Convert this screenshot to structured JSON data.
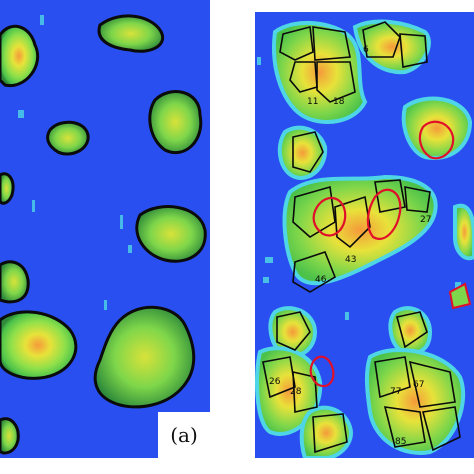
{
  "figure": {
    "panel_a_caption": "(a)",
    "panel_b_caption": ""
  },
  "colors": {
    "background_blue": "#2a4ff0",
    "low_cyan": "#4fd6e6",
    "mid_green": "#6ee05a",
    "high_yellow": "#e8e23a",
    "peak_orange": "#f59a3a",
    "segment_outline": "#0b0b0b",
    "highlight_outline": "#e0102a"
  },
  "segment_labels": [
    "6",
    "11",
    "18",
    "27",
    "43",
    "46",
    "67",
    "77",
    "85",
    "26",
    "28"
  ]
}
